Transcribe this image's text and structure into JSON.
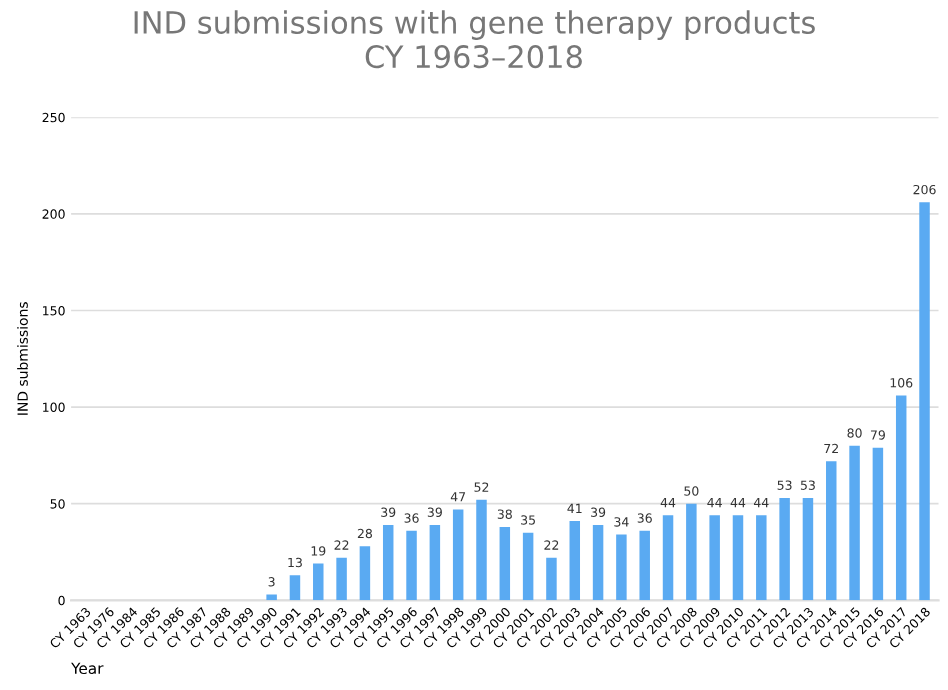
{
  "chart_data": {
    "type": "bar",
    "title": "IND submissions with gene therapy products\nCY 1963–2018",
    "xlabel": "Year",
    "ylabel": "IND submissions",
    "categories": [
      "CY 1963",
      "CY 1976",
      "CY 1984",
      "CY 1985",
      "CY 1986",
      "CY 1987",
      "CY 1988",
      "CY 1989",
      "CY 1990",
      "CY 1991",
      "CY 1992",
      "CY 1993",
      "CY 1994",
      "CY 1995",
      "CY 1996",
      "CY 1997",
      "CY 1998",
      "CY 1999",
      "CY 2000",
      "CY 2001",
      "CY 2002",
      "CY 2003",
      "CY 2004",
      "CY 2005",
      "CY 2006",
      "CY 2007",
      "CY 2008",
      "CY 2009",
      "CY 2010",
      "CY 2011",
      "CY 2012",
      "CY 2013",
      "CY 2014",
      "CY 2015",
      "CY 2016",
      "CY 2017",
      "CY 2018"
    ],
    "values": [
      0,
      0,
      0,
      0,
      0,
      0,
      0,
      0,
      3,
      13,
      19,
      22,
      28,
      39,
      36,
      39,
      47,
      52,
      38,
      35,
      22,
      41,
      39,
      34,
      36,
      44,
      50,
      44,
      44,
      44,
      53,
      53,
      72,
      80,
      79,
      106,
      206
    ],
    "value_labels": [
      null,
      null,
      null,
      null,
      null,
      null,
      null,
      null,
      "3",
      "13",
      "19",
      "22",
      "28",
      "39",
      "36",
      "39",
      "47",
      "52",
      "38",
      "35",
      "22",
      "41",
      "39",
      "34",
      "36",
      "44",
      "50",
      "44",
      "44",
      "44",
      "53",
      "53",
      "72",
      "80",
      "79",
      "106",
      "206"
    ],
    "color": "#5aaaf2",
    "ylim": [
      0,
      250
    ],
    "yticks": [
      0,
      50,
      100,
      150,
      200,
      250
    ],
    "grid": "y"
  }
}
